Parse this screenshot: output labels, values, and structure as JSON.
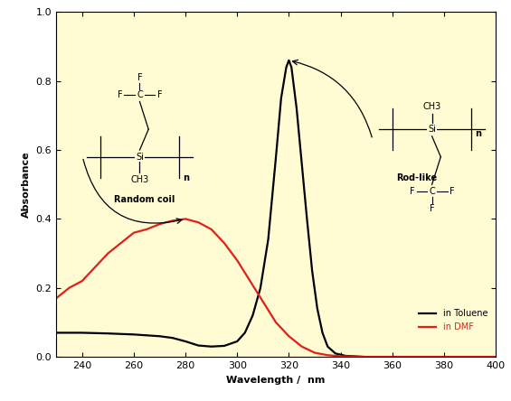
{
  "chart_data": {
    "type": "line",
    "x_label": "Wavelength /  nm",
    "y_label": "Absorbance",
    "xlim": [
      230,
      400
    ],
    "ylim": [
      0.0,
      1.0
    ],
    "xticks": [
      240,
      260,
      280,
      300,
      320,
      340,
      360,
      380,
      400
    ],
    "yticks": [
      {
        "value": 0.0,
        "label": "0.0"
      },
      {
        "value": 0.2,
        "label": "0.2"
      },
      {
        "value": 0.4,
        "label": "0.4"
      },
      {
        "value": 0.6,
        "label": "0.6"
      },
      {
        "value": 0.8,
        "label": "0.8"
      },
      {
        "value": 1.0,
        "label": "1.0"
      }
    ],
    "grid": false,
    "legend": "lower right",
    "series": [
      {
        "name": "in Toluene",
        "color": "#000000",
        "line_style": "solid",
        "x": [
          230,
          240,
          250,
          260,
          270,
          275,
          280,
          285,
          290,
          295,
          300,
          303,
          306,
          309,
          312,
          315,
          317,
          319,
          320,
          321,
          323,
          325,
          327,
          329,
          331,
          333,
          335,
          338,
          342,
          350,
          370,
          400
        ],
        "values": [
          0.07,
          0.07,
          0.068,
          0.065,
          0.06,
          0.055,
          0.045,
          0.033,
          0.03,
          0.032,
          0.045,
          0.07,
          0.12,
          0.2,
          0.34,
          0.58,
          0.75,
          0.84,
          0.86,
          0.84,
          0.72,
          0.56,
          0.4,
          0.25,
          0.14,
          0.07,
          0.03,
          0.01,
          0.003,
          0.0,
          0.0,
          0.0
        ]
      },
      {
        "name": "in DMF",
        "color": "#e0201b",
        "line_style": "solid",
        "x": [
          230,
          235,
          240,
          245,
          250,
          255,
          260,
          265,
          270,
          275,
          280,
          285,
          290,
          295,
          300,
          305,
          310,
          315,
          320,
          325,
          330,
          335,
          340,
          350,
          400
        ],
        "values": [
          0.17,
          0.2,
          0.22,
          0.26,
          0.3,
          0.33,
          0.36,
          0.37,
          0.385,
          0.395,
          0.4,
          0.39,
          0.37,
          0.33,
          0.28,
          0.22,
          0.16,
          0.1,
          0.06,
          0.03,
          0.012,
          0.005,
          0.002,
          0.0,
          0.0
        ]
      }
    ],
    "annotations": [
      {
        "text": "Random coil",
        "series": "in DMF"
      },
      {
        "text": "Rod-like",
        "series": "in Toluene"
      }
    ],
    "structure": {
      "silicon": "Si",
      "methyl": "CH3",
      "carbon": "C",
      "fluorine": "F",
      "repeat": "n"
    }
  }
}
